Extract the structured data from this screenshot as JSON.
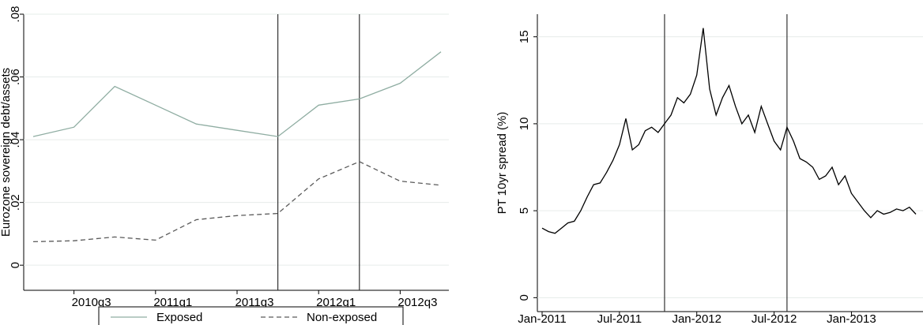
{
  "chart_data": [
    {
      "type": "line",
      "y_label": "Eurozone sovereign debt/assets",
      "categories": [
        null,
        "2010q3",
        null,
        "2011q1",
        null,
        "2011q3",
        null,
        "2012q1",
        null,
        "2012q3",
        null
      ],
      "series": [
        {
          "name": "Exposed",
          "color": "#8fada2",
          "style": "solid",
          "values": [
            0.041,
            0.044,
            0.057,
            0.051,
            0.045,
            0.043,
            0.041,
            0.051,
            0.053,
            0.058,
            0.068
          ]
        },
        {
          "name": "Non-exposed",
          "color": "#5a5a5a",
          "style": "dashed",
          "values": [
            0.0075,
            0.0078,
            0.009,
            0.008,
            0.0145,
            0.0158,
            0.0165,
            0.0275,
            0.033,
            0.0268,
            0.0255
          ]
        }
      ],
      "ylim": [
        -0.008,
        0.08
      ],
      "yticks": [
        0,
        {
          "value": 0.02,
          "label": ".02"
        },
        {
          "value": 0.04,
          "label": ".04"
        },
        {
          "value": 0.06,
          "label": ".06"
        },
        {
          "value": 0.08,
          "label": ".08"
        }
      ],
      "vlines": [
        6,
        8
      ],
      "grid": true,
      "legend": "bottom"
    },
    {
      "type": "line",
      "y_label": "PT 10yr spread (%)",
      "categories": [
        "Jan-2011",
        null,
        null,
        null,
        null,
        null,
        null,
        null,
        null,
        null,
        null,
        null,
        "Jul-2011",
        null,
        null,
        null,
        null,
        null,
        null,
        null,
        null,
        null,
        null,
        null,
        "Jan-2012",
        null,
        null,
        null,
        null,
        null,
        null,
        null,
        null,
        null,
        null,
        null,
        "Jul-2012",
        null,
        null,
        null,
        null,
        null,
        null,
        null,
        null,
        null,
        null,
        null,
        "Jan-2013",
        null,
        null,
        null,
        null,
        null,
        null,
        null,
        null,
        null,
        null
      ],
      "color": "#000000",
      "values": [
        4.0,
        3.8,
        3.7,
        4.0,
        4.3,
        4.4,
        5.0,
        5.8,
        6.5,
        6.6,
        7.2,
        7.9,
        8.8,
        10.3,
        8.5,
        8.8,
        9.6,
        9.8,
        9.5,
        10.0,
        10.5,
        11.5,
        11.2,
        11.7,
        12.8,
        15.5,
        12.0,
        10.5,
        11.5,
        12.2,
        11.0,
        10.0,
        10.5,
        9.5,
        11.0,
        10.0,
        9.0,
        8.5,
        9.8,
        9.0,
        8.0,
        7.8,
        7.5,
        6.8,
        7.0,
        7.5,
        6.5,
        7.0,
        6.0,
        5.5,
        5.0,
        4.6,
        5.0,
        4.8,
        4.9,
        5.1,
        5.0,
        5.2,
        4.8
      ],
      "ylim": [
        -0.8,
        16.3
      ],
      "yticks": [
        0,
        5,
        10,
        15
      ],
      "vlines": [
        19,
        38
      ],
      "grid": true
    }
  ]
}
